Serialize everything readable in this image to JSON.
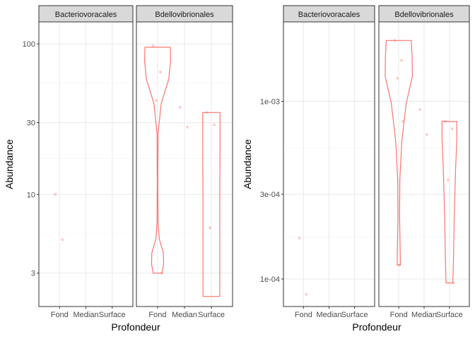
{
  "chart_data": [
    {
      "type": "violin",
      "facets": [
        "Bacteriovoracales",
        "Bdellovibrionales"
      ],
      "categories": [
        "Fond",
        "Median",
        "Surface"
      ],
      "xlabel": "Profondeur",
      "ylabel": "Abundance",
      "y_scale": "log10",
      "ylim": [
        1.8,
        140
      ],
      "y_ticks": [
        3,
        10,
        30,
        100
      ],
      "y_tick_labels": [
        "3",
        "10",
        "30",
        "100"
      ],
      "grid": true,
      "series_color": "#F8766D",
      "points": {
        "Bacteriovoracales": {
          "Fond": [
            10,
            5
          ],
          "Median": [],
          "Surface": []
        },
        "Bdellovibrionales": {
          "Fond": [
            97,
            65,
            42,
            3.0
          ],
          "Median": [
            38,
            28
          ],
          "Surface": [
            35,
            29,
            6
          ]
        }
      },
      "violin_range": {
        "Bdellovibrionales": {
          "Fond": [
            3.0,
            95
          ],
          "Surface": [
            2.1,
            35
          ]
        }
      }
    },
    {
      "type": "violin",
      "facets": [
        "Bacteriovoracales",
        "Bdellovibrionales"
      ],
      "categories": [
        "Fond",
        "Median",
        "Surface"
      ],
      "xlabel": "Profondeur",
      "ylabel": "Abundance",
      "y_scale": "log10",
      "ylim": [
        7e-05,
        0.0028
      ],
      "y_ticks": [
        0.0001,
        0.0003,
        0.001
      ],
      "y_tick_labels": [
        "1e-04",
        "3e-04",
        "1e-03"
      ],
      "grid": true,
      "series_color": "#F8766D",
      "points": {
        "Bacteriovoracales": {
          "Fond": [
            0.00017,
            8.2e-05
          ],
          "Median": [],
          "Surface": []
        },
        "Bdellovibrionales": {
          "Fond": [
            0.0022,
            0.0017,
            0.00135,
            0.00077,
            0.00012
          ],
          "Median": [
            0.0009,
            0.00065
          ],
          "Surface": [
            0.00077,
            0.0007,
            0.00036,
            9.5e-05
          ]
        }
      },
      "violin_range": {
        "Bdellovibrionales": {
          "Fond": [
            0.00012,
            0.0022
          ],
          "Surface": [
            9.5e-05,
            0.00077
          ]
        }
      }
    }
  ]
}
